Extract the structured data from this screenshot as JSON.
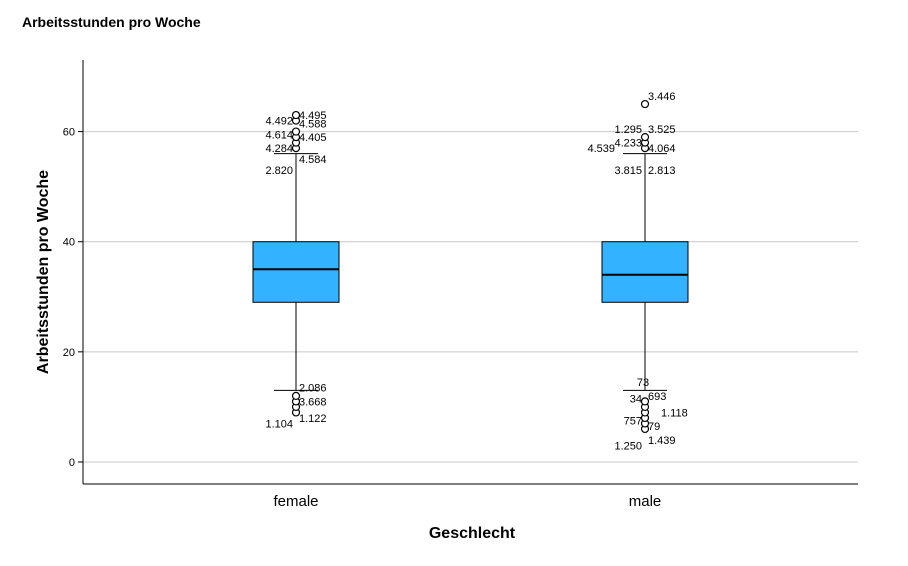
{
  "chart_data": {
    "type": "boxplot",
    "title": "Arbeitsstunden pro Woche",
    "xlabel": "Geschlecht",
    "ylabel": "Arbeitsstunden pro Woche",
    "ylim": [
      -4,
      73
    ],
    "yticks": [
      0,
      20,
      40,
      60
    ],
    "grid": true,
    "colors": {
      "box": "#33b2ff",
      "grid": "#c8c8c8",
      "line": "#000000"
    },
    "categories": [
      "female",
      "male"
    ],
    "boxes": [
      {
        "category": "female",
        "q1": 29,
        "median": 35,
        "q3": 40,
        "whisker_low": 13,
        "whisker_high": 56,
        "outliers_high": [
          57,
          58,
          59,
          60,
          62,
          63
        ],
        "outliers_low": [
          9,
          10,
          11,
          12
        ],
        "outlier_labels": [
          {
            "text": "4.495",
            "y": 63,
            "side": "right"
          },
          {
            "text": "4.492",
            "y": 62,
            "side": "left"
          },
          {
            "text": "4.588",
            "y": 61.5,
            "side": "right"
          },
          {
            "text": "4.614",
            "y": 59.5,
            "side": "left"
          },
          {
            "text": "4.405",
            "y": 59,
            "side": "right"
          },
          {
            "text": "4.284",
            "y": 57,
            "side": "left"
          },
          {
            "text": "4.584",
            "y": 55,
            "side": "right"
          },
          {
            "text": "2.820",
            "y": 53,
            "side": "left"
          },
          {
            "text": "2.086",
            "y": 13.5,
            "side": "right"
          },
          {
            "text": "3.668",
            "y": 11,
            "side": "right"
          },
          {
            "text": "1.122",
            "y": 8,
            "side": "right"
          },
          {
            "text": "1.104",
            "y": 7,
            "side": "left"
          }
        ]
      },
      {
        "category": "male",
        "q1": 29,
        "median": 34,
        "q3": 40,
        "whisker_low": 13,
        "whisker_high": 56,
        "outliers_high": [
          57,
          58,
          59,
          65
        ],
        "outliers_low": [
          6,
          7,
          8,
          9,
          10,
          11
        ],
        "outlier_labels": [
          {
            "text": "3.446",
            "y": 66.5,
            "side": "right"
          },
          {
            "text": "1.295",
            "y": 60.5,
            "side": "left"
          },
          {
            "text": "3.525",
            "y": 60.5,
            "side": "right"
          },
          {
            "text": "4.233",
            "y": 58,
            "side": "left"
          },
          {
            "text": "4.539",
            "y": 57,
            "side": "left-far"
          },
          {
            "text": "4.064",
            "y": 57,
            "side": "right"
          },
          {
            "text": "3.815",
            "y": 53,
            "side": "left"
          },
          {
            "text": "2.813",
            "y": 53,
            "side": "right"
          },
          {
            "text": "73",
            "y": 14.5,
            "side": "center"
          },
          {
            "text": "34",
            "y": 11.5,
            "side": "left"
          },
          {
            "text": "693",
            "y": 12,
            "side": "right-near"
          },
          {
            "text": "1.118",
            "y": 9,
            "side": "right-far"
          },
          {
            "text": "757",
            "y": 7.5,
            "side": "left"
          },
          {
            "text": "79",
            "y": 6.5,
            "side": "right-near"
          },
          {
            "text": "1.439",
            "y": 4,
            "side": "right"
          },
          {
            "text": "1.250",
            "y": 3,
            "side": "left"
          }
        ]
      }
    ]
  }
}
